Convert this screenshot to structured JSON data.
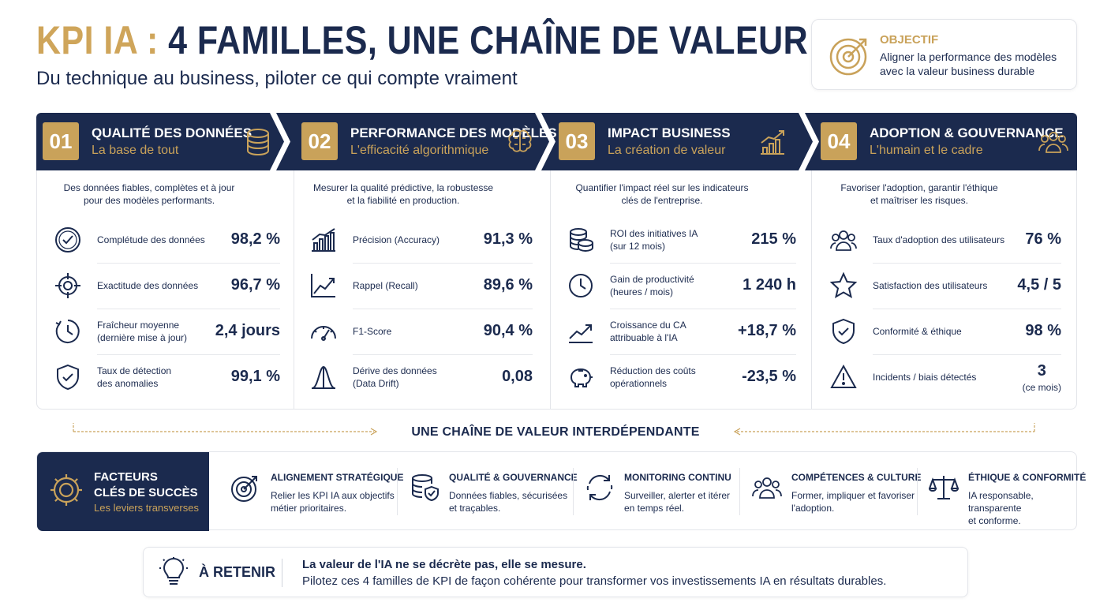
{
  "header": {
    "title_prefix": "KPI IA :",
    "title_main": "4 FAMILLES, UNE CHAÎNE DE VALEUR",
    "subtitle": "Du technique au business, piloter ce qui compte vraiment"
  },
  "objective": {
    "label": "OBJECTIF",
    "text": "Aligner la performance des modèles avec la valeur business durable",
    "icon": "target-icon"
  },
  "families": [
    {
      "num": "01",
      "title": "QUALITÉ DES DONNÉES",
      "subtitle": "La base de tout",
      "icon": "database-icon",
      "intro_1": "Des données fiables, complètes et à jour",
      "intro_2": "pour des modèles performants.",
      "kpis": [
        {
          "label_1": "Complétude des données",
          "label_2": "",
          "value": "98,2 %",
          "note": "",
          "icon": "check-badge-icon"
        },
        {
          "label_1": "Exactitude des données",
          "label_2": "",
          "value": "96,7 %",
          "note": "",
          "icon": "crosshair-icon"
        },
        {
          "label_1": "Fraîcheur moyenne",
          "label_2": "(dernière mise à jour)",
          "value": "2,4 jours",
          "note": "",
          "icon": "clock-icon"
        },
        {
          "label_1": "Taux de détection",
          "label_2": "des anomalies",
          "value": "99,1 %",
          "note": "",
          "icon": "shield-check-icon"
        }
      ]
    },
    {
      "num": "02",
      "title": "PERFORMANCE DES MODÈLES",
      "subtitle": "L'efficacité algorithmique",
      "icon": "brain-icon",
      "intro_1": "Mesurer la qualité prédictive, la robustesse",
      "intro_2": "et la fiabilité en production.",
      "kpis": [
        {
          "label_1": "Précision (Accuracy)",
          "label_2": "",
          "value": "91,3 %",
          "note": "",
          "icon": "bar-chart-icon"
        },
        {
          "label_1": "Rappel (Recall)",
          "label_2": "",
          "value": "89,6 %",
          "note": "",
          "icon": "line-chart-icon"
        },
        {
          "label_1": "F1-Score",
          "label_2": "",
          "value": "90,4 %",
          "note": "",
          "icon": "gauge-icon"
        },
        {
          "label_1": "Dérive des données",
          "label_2": "(Data Drift)",
          "value": "0,08",
          "note": "",
          "icon": "bell-curve-icon"
        }
      ]
    },
    {
      "num": "03",
      "title": "IMPACT BUSINESS",
      "subtitle": "La création de valeur",
      "icon": "growth-chart-icon",
      "intro_1": "Quantifier l'impact réel sur les indicateurs",
      "intro_2": "clés de l'entreprise.",
      "kpis": [
        {
          "label_1": "ROI des initiatives IA",
          "label_2": "(sur 12 mois)",
          "value": "215 %",
          "note": "",
          "icon": "coins-icon"
        },
        {
          "label_1": "Gain de productivité",
          "label_2": "(heures / mois)",
          "value": "1 240 h",
          "note": "",
          "icon": "clock-icon"
        },
        {
          "label_1": "Croissance du CA",
          "label_2": "attribuable à l'IA",
          "value": "+18,7 %",
          "note": "",
          "icon": "trend-up-icon"
        },
        {
          "label_1": "Réduction des coûts",
          "label_2": "opérationnels",
          "value": "-23,5 %",
          "note": "",
          "icon": "piggy-bank-icon"
        }
      ]
    },
    {
      "num": "04",
      "title": "ADOPTION & GOUVERNANCE",
      "subtitle": "L'humain et le cadre",
      "icon": "users-icon",
      "intro_1": "Favoriser l'adoption, garantir l'éthique",
      "intro_2": "et maîtriser les risques.",
      "kpis": [
        {
          "label_1": "Taux d'adoption des utilisateurs",
          "label_2": "",
          "value": "76 %",
          "note": "",
          "icon": "users-icon"
        },
        {
          "label_1": "Satisfaction des utilisateurs",
          "label_2": "",
          "value": "4,5 / 5",
          "note": "",
          "icon": "star-icon"
        },
        {
          "label_1": "Conformité & éthique",
          "label_2": "",
          "value": "98 %",
          "note": "",
          "icon": "shield-check-icon"
        },
        {
          "label_1": "Incidents / biais détectés",
          "label_2": "",
          "value": "3",
          "note": "(ce mois)",
          "icon": "warning-icon"
        }
      ]
    }
  ],
  "chain": {
    "title": "UNE CHAÎNE DE VALEUR INTERDÉPENDANTE"
  },
  "factors": {
    "title_1": "FACTEURS",
    "title_2": "CLÉS DE SUCCÈS",
    "subtitle": "Les leviers transverses",
    "items": [
      {
        "title": "ALIGNEMENT STRATÉGIQUE",
        "desc_1": "Relier les KPI IA aux objectifs",
        "desc_2": "métier prioritaires.",
        "icon": "target-icon"
      },
      {
        "title": "QUALITÉ & GOUVERNANCE",
        "desc_1": "Données fiables, sécurisées",
        "desc_2": "et traçables.",
        "icon": "database-shield-icon"
      },
      {
        "title": "MONITORING CONTINU",
        "desc_1": "Surveiller, alerter et itérer",
        "desc_2": "en temps réel.",
        "icon": "refresh-cycle-icon"
      },
      {
        "title": "COMPÉTENCES & CULTURE",
        "desc_1": "Former, impliquer et favoriser",
        "desc_2": "l'adoption.",
        "icon": "team-icon"
      },
      {
        "title": "ÉTHIQUE & CONFORMITÉ",
        "desc_1": "IA responsable, transparente",
        "desc_2": "et conforme.",
        "icon": "scales-icon"
      }
    ]
  },
  "takeaway": {
    "label": "À RETENIR",
    "line_1": "La valeur de l'IA ne se décrète pas, elle se mesure.",
    "line_2": "Pilotez ces 4 familles de KPI de façon cohérente pour transformer vos investissements IA en résultats durables."
  },
  "colors": {
    "navy": "#1b2a4e",
    "gold": "#c9a25a"
  }
}
